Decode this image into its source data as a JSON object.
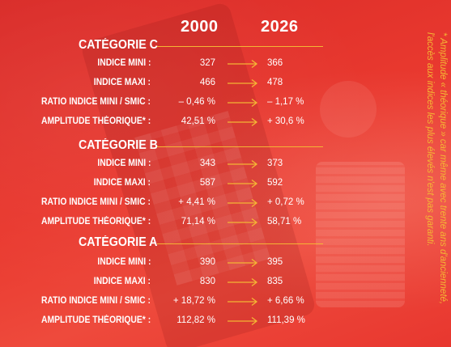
{
  "years": {
    "start": "2000",
    "end": "2026"
  },
  "categories": [
    {
      "title": "CATÉGORIE C",
      "rows": [
        {
          "label": "INDICE MINI :",
          "v2000": "327",
          "v2026": "366"
        },
        {
          "label": "INDICE MAXI :",
          "v2000": "466",
          "v2026": "478"
        },
        {
          "label": "RATIO INDICE MINI / SMIC :",
          "v2000": "– 0,46 %",
          "v2026": "– 1,17 %"
        },
        {
          "label": "AMPLITUDE THÉORIQUE* :",
          "v2000": "42,51 %",
          "v2026": "+ 30,6 %"
        }
      ]
    },
    {
      "title": "CATÉGORIE B",
      "rows": [
        {
          "label": "INDICE MINI :",
          "v2000": "343",
          "v2026": "373"
        },
        {
          "label": "INDICE MAXI :",
          "v2000": "587",
          "v2026": "592"
        },
        {
          "label": "RATIO INDICE MINI / SMIC :",
          "v2000": "+ 4,41 %",
          "v2026": "+ 0,72 %"
        },
        {
          "label": "AMPLITUDE THÉORIQUE* :",
          "v2000": "71,14 %",
          "v2026": "58,71 %"
        }
      ]
    },
    {
      "title": "CATÉGORIE A",
      "rows": [
        {
          "label": "INDICE MINI :",
          "v2000": "390",
          "v2026": "395"
        },
        {
          "label": "INDICE MAXI :",
          "v2000": "830",
          "v2026": "835"
        },
        {
          "label": "RATIO INDICE MINI / SMIC :",
          "v2000": "+ 18,72 %",
          "v2026": "+ 6,66 %"
        },
        {
          "label": "AMPLITUDE THÉORIQUE* :",
          "v2000": "112,82 %",
          "v2026": "111,39 %"
        }
      ]
    }
  ],
  "footnote": "* Amplitude « théorique » car même avec trente ans d'ancienneté, l'accès aux indices les plus élevés n'est pas garanti.",
  "colors": {
    "background": "#e8322c",
    "accent": "#f4b534",
    "text": "#ffffff"
  }
}
